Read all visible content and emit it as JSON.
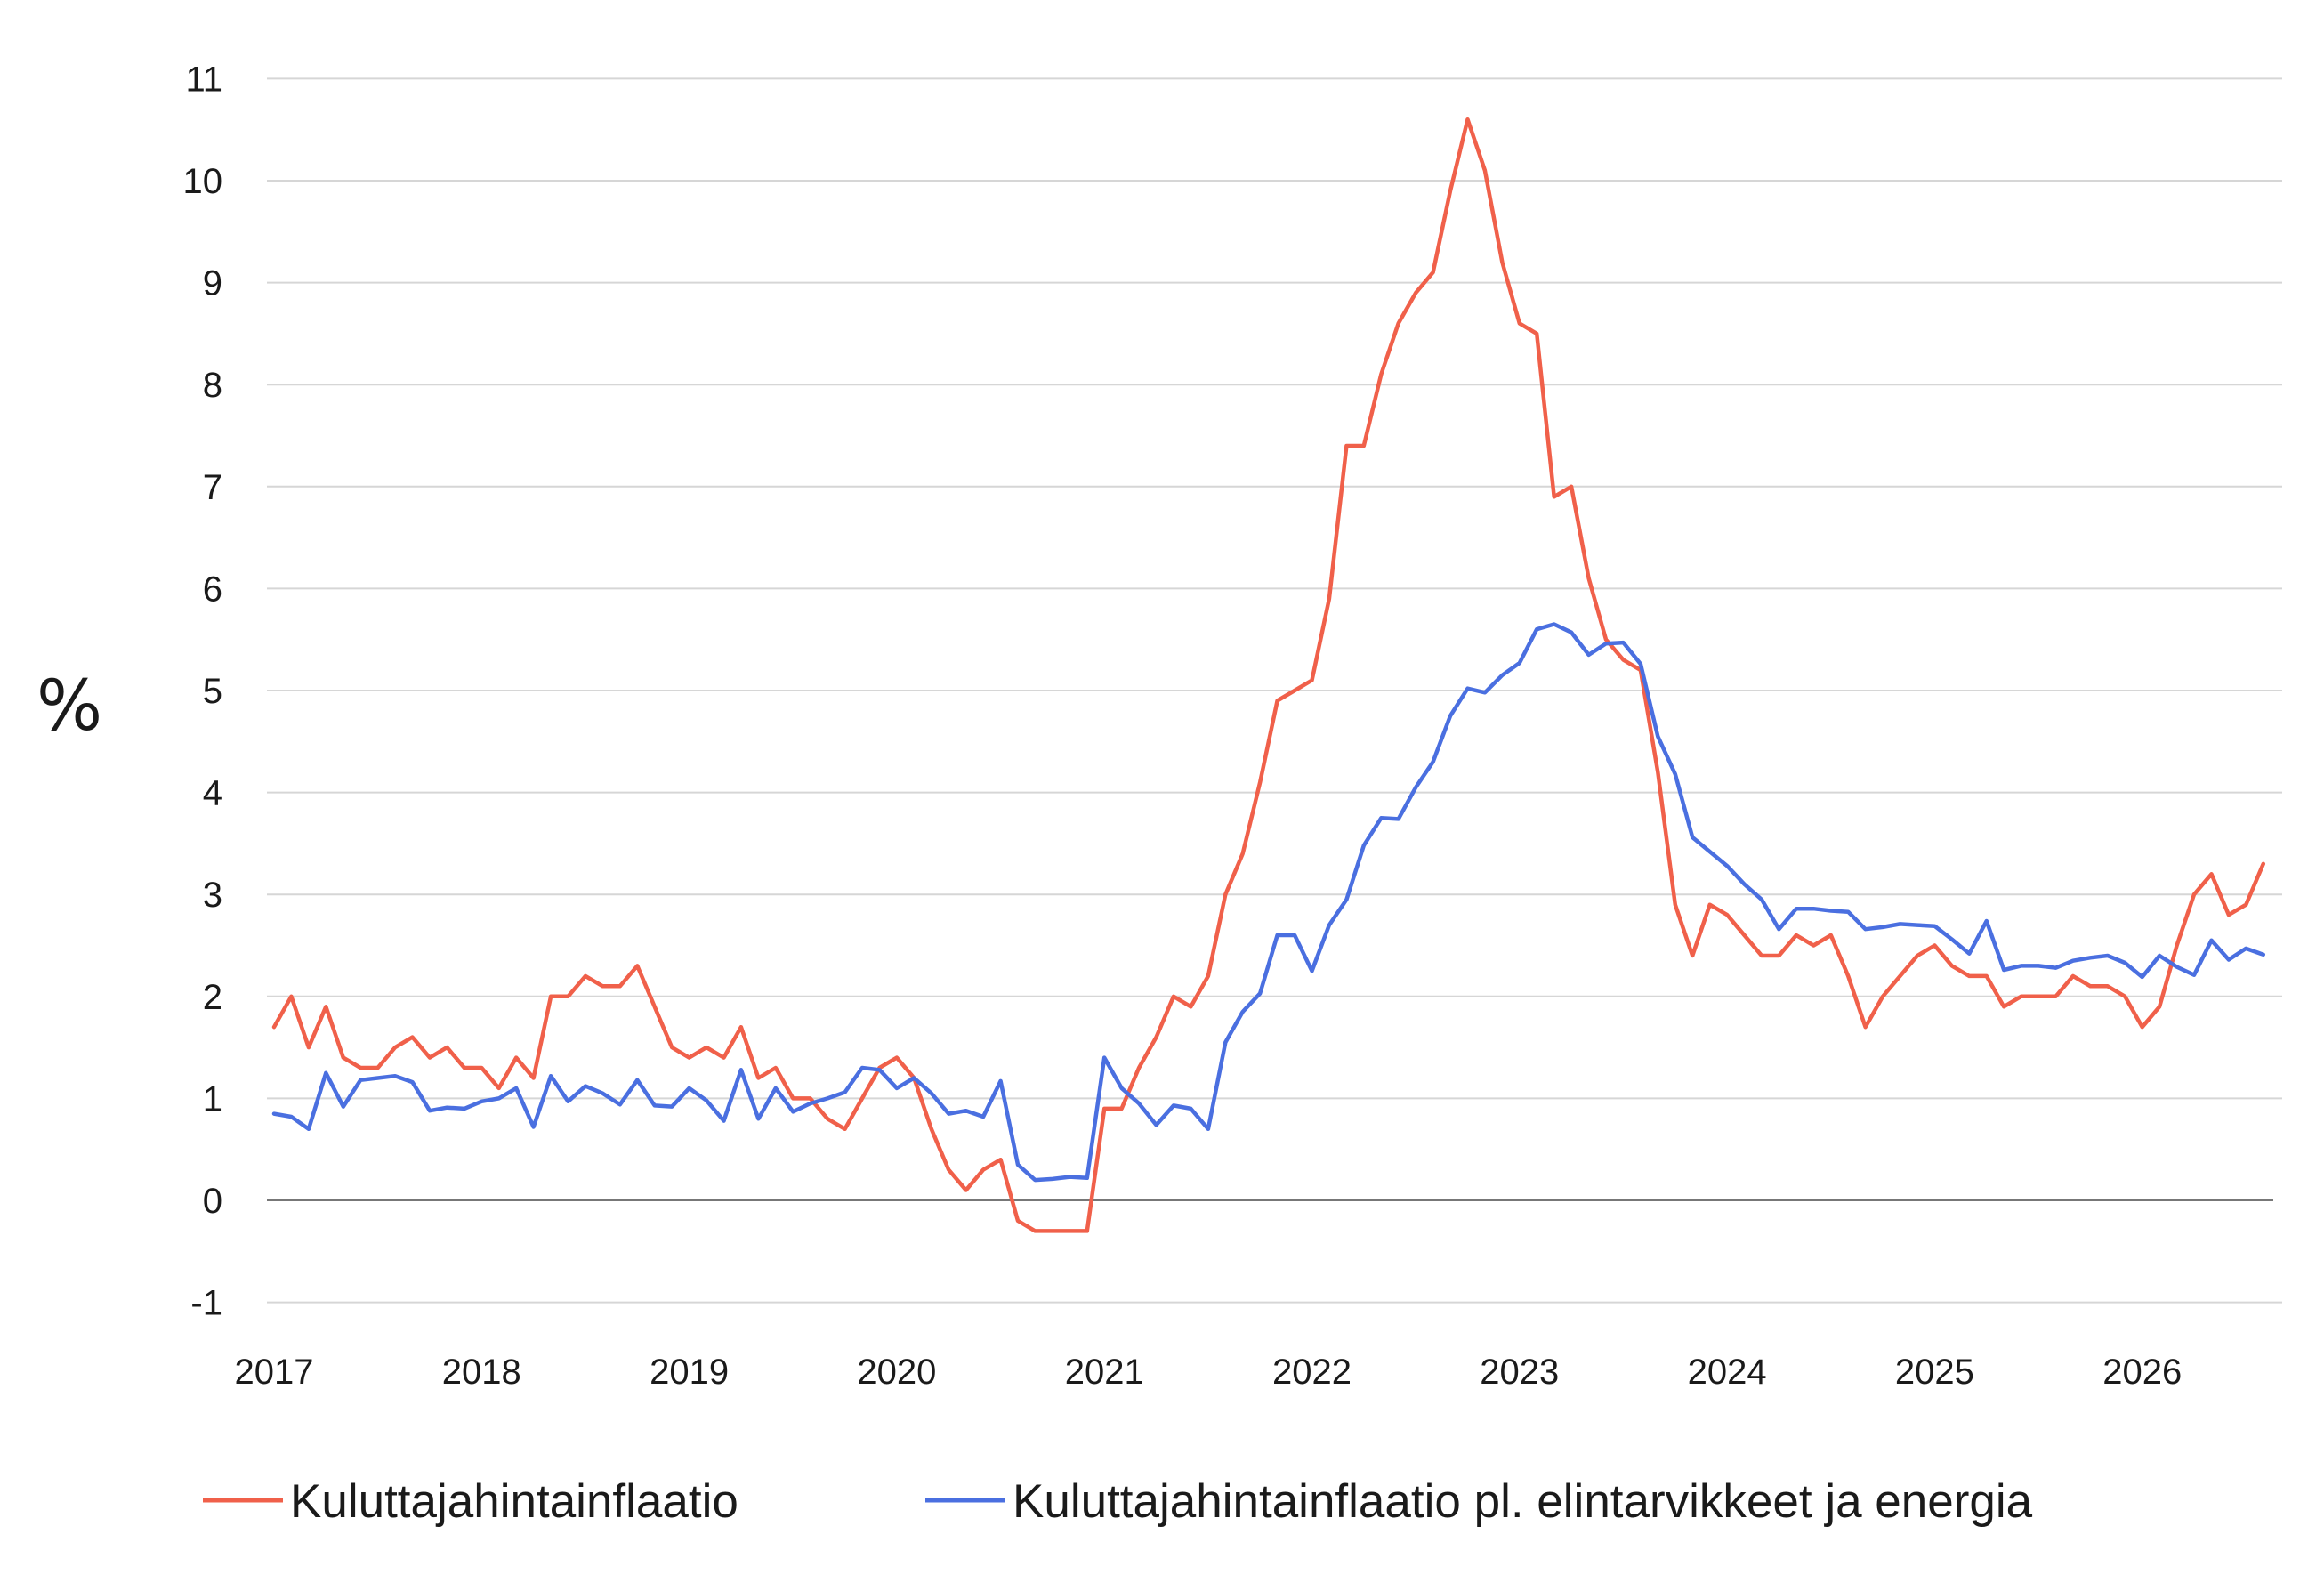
{
  "chart_data": {
    "type": "line",
    "xlabel": "",
    "ylabel": "%",
    "ylim": [
      -1,
      11
    ],
    "yticks": [
      -1,
      0,
      1,
      2,
      3,
      4,
      5,
      6,
      7,
      8,
      9,
      10,
      11
    ],
    "xlim": [
      2017.0,
      2026.667
    ],
    "xticks": [
      "2017",
      "2018",
      "2019",
      "2020",
      "2021",
      "2022",
      "2023",
      "2024",
      "2025",
      "2026"
    ],
    "grid": true,
    "legend_position": "bottom",
    "series": [
      {
        "name": "Kuluttajahintainflaatio",
        "color": "#f0604a",
        "x_start": 2017.0,
        "x_step_months": 1,
        "values": [
          1.7,
          2.0,
          1.5,
          1.9,
          1.4,
          1.3,
          1.3,
          1.5,
          1.6,
          1.4,
          1.5,
          1.3,
          1.3,
          1.1,
          1.4,
          1.2,
          2.0,
          2.0,
          2.2,
          2.1,
          2.1,
          2.3,
          1.9,
          1.5,
          1.4,
          1.5,
          1.4,
          1.7,
          1.2,
          1.3,
          1.0,
          1.0,
          0.8,
          0.7,
          1.0,
          1.3,
          1.4,
          1.2,
          0.7,
          0.3,
          0.1,
          0.3,
          0.4,
          -0.2,
          -0.3,
          -0.3,
          -0.3,
          -0.3,
          0.9,
          0.9,
          1.3,
          1.6,
          2.0,
          1.9,
          2.2,
          3.0,
          3.4,
          4.1,
          4.9,
          5.0,
          5.1,
          5.9,
          7.4,
          7.4,
          8.1,
          8.6,
          8.9,
          9.1,
          9.9,
          10.6,
          10.1,
          9.2,
          8.6,
          8.5,
          6.9,
          7.0,
          6.1,
          5.5,
          5.3,
          5.2,
          4.2,
          2.9,
          2.4,
          2.9,
          2.8,
          2.6,
          2.4,
          2.4,
          2.6,
          2.5,
          2.6,
          2.2,
          1.7,
          2.0,
          2.2,
          2.4,
          2.5,
          2.3,
          2.2,
          2.2,
          1.9,
          2.0,
          2.0,
          2.0,
          2.2,
          2.1,
          2.1,
          2.0,
          1.7,
          1.9,
          2.5,
          3.0,
          3.2,
          2.8,
          2.9,
          3.3
        ]
      },
      {
        "name": "Kuluttajahintainflaatio pl. elintarvikkeet ja energia",
        "color": "#4a6fe0",
        "x_start": 2017.0,
        "x_step_months": 1,
        "values": [
          0.85,
          0.82,
          0.7,
          1.25,
          0.92,
          1.18,
          1.2,
          1.22,
          1.16,
          0.88,
          0.91,
          0.9,
          0.97,
          1.0,
          1.1,
          0.72,
          1.22,
          0.97,
          1.12,
          1.05,
          0.94,
          1.18,
          0.93,
          0.92,
          1.1,
          0.98,
          0.78,
          1.28,
          0.8,
          1.1,
          0.87,
          0.95,
          1.0,
          1.06,
          1.3,
          1.28,
          1.1,
          1.2,
          1.05,
          0.85,
          0.88,
          0.82,
          1.17,
          0.35,
          0.2,
          0.21,
          0.23,
          0.22,
          1.4,
          1.1,
          0.95,
          0.74,
          0.93,
          0.9,
          0.7,
          1.55,
          1.85,
          2.03,
          2.6,
          2.6,
          2.25,
          2.7,
          2.95,
          3.48,
          3.75,
          3.74,
          4.05,
          4.3,
          4.75,
          5.02,
          4.98,
          5.15,
          5.27,
          5.6,
          5.65,
          5.57,
          5.35,
          5.46,
          5.47,
          5.26,
          4.55,
          4.18,
          3.56,
          3.42,
          3.28,
          3.1,
          2.95,
          2.66,
          2.86,
          2.86,
          2.84,
          2.83,
          2.66,
          2.68,
          2.71,
          2.7,
          2.69,
          2.56,
          2.42,
          2.74,
          2.26,
          2.3,
          2.3,
          2.28,
          2.35,
          2.38,
          2.4,
          2.33,
          2.19,
          2.4,
          2.29,
          2.21,
          2.55,
          2.36,
          2.47,
          2.41
        ]
      }
    ]
  }
}
